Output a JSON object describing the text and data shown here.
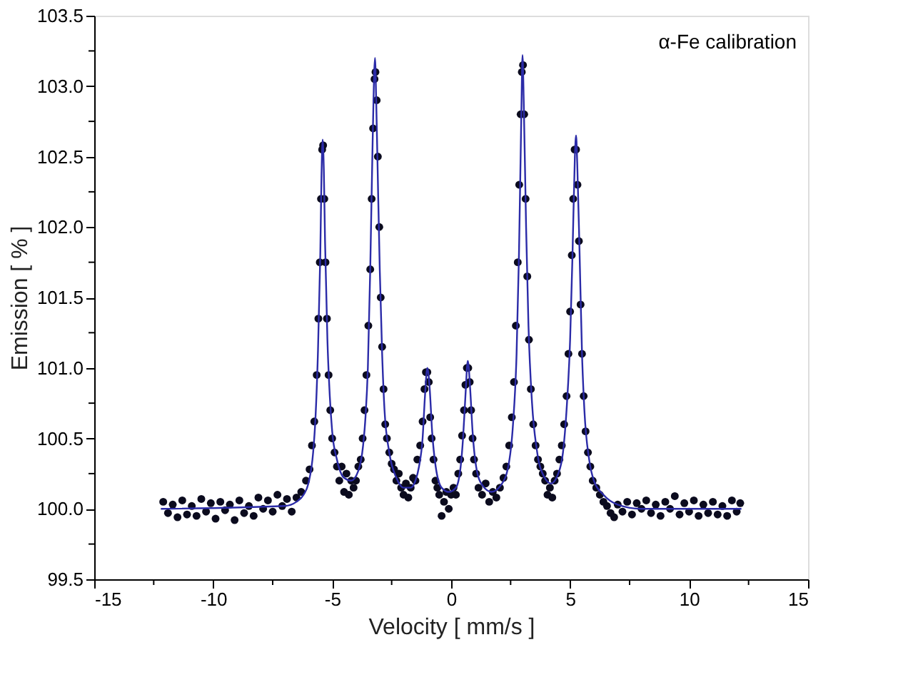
{
  "chart_data": {
    "type": "scatter",
    "xlabel": "Velocity [ mm/s ]",
    "ylabel": "Emission [ % ]",
    "annotations": [
      "α-Fe calibration"
    ],
    "xlim": [
      -15,
      15
    ],
    "ylim": [
      99.5,
      103.5
    ],
    "xticks": [
      -15,
      {
        "value": -12.5,
        "label": null
      },
      -10,
      {
        "value": -7.5,
        "label": null
      },
      -5,
      {
        "value": -2.5,
        "label": null
      },
      0,
      {
        "value": 2.5,
        "label": null
      },
      5,
      {
        "value": 7.5,
        "label": null
      },
      10,
      {
        "value": 12.5,
        "label": null
      },
      15
    ],
    "yticks": [
      {
        "value": 99.5,
        "label": "99.5"
      },
      {
        "value": 99.75,
        "label": null
      },
      {
        "value": 100,
        "label": "100.0"
      },
      {
        "value": 100.25,
        "label": null
      },
      {
        "value": 100.5,
        "label": "100.5"
      },
      {
        "value": 100.75,
        "label": null
      },
      {
        "value": 101,
        "label": "101.0"
      },
      {
        "value": 101.25,
        "label": null
      },
      {
        "value": 101.5,
        "label": "101.5"
      },
      {
        "value": 101.75,
        "label": null
      },
      {
        "value": 102,
        "label": "102.0"
      },
      {
        "value": 102.25,
        "label": null
      },
      {
        "value": 102.5,
        "label": "102.5"
      },
      {
        "value": 102.75,
        "label": null
      },
      {
        "value": 103,
        "label": "103.0"
      },
      {
        "value": 103.25,
        "label": null
      },
      {
        "value": 103.5,
        "label": "103.5"
      }
    ],
    "grid": false,
    "series": [
      {
        "marker": "circle",
        "color": "#0b0b1e",
        "x": [
          -12.1,
          -11.9,
          -11.7,
          -11.5,
          -11.3,
          -11.1,
          -10.9,
          -10.7,
          -10.5,
          -10.3,
          -10.1,
          -9.9,
          -9.7,
          -9.5,
          -9.3,
          -9.1,
          -8.9,
          -8.7,
          -8.5,
          -8.3,
          -8.1,
          -7.9,
          -7.7,
          -7.5,
          -7.3,
          -7.1,
          -6.9,
          -6.7,
          -6.5,
          -6.3,
          -6.1,
          -5.95,
          -5.85,
          -5.75,
          -5.65,
          -5.58,
          -5.52,
          -5.47,
          -5.42,
          -5.38,
          -5.33,
          -5.28,
          -5.22,
          -5.15,
          -5.08,
          -5.0,
          -4.9,
          -4.8,
          -4.7,
          -4.6,
          -4.5,
          -4.4,
          -4.3,
          -4.2,
          -4.1,
          -4.0,
          -3.9,
          -3.8,
          -3.72,
          -3.64,
          -3.56,
          -3.48,
          -3.4,
          -3.34,
          -3.28,
          -3.22,
          -3.18,
          -3.13,
          -3.08,
          -3.02,
          -2.96,
          -2.9,
          -2.84,
          -2.77,
          -2.7,
          -2.6,
          -2.5,
          -2.4,
          -2.3,
          -2.2,
          -2.1,
          -2.0,
          -1.9,
          -1.8,
          -1.7,
          -1.6,
          -1.5,
          -1.42,
          -1.3,
          -1.2,
          -1.12,
          -1.06,
          -1.0,
          -0.94,
          -0.88,
          -0.82,
          -0.74,
          -0.66,
          -0.58,
          -0.5,
          -0.4,
          -0.3,
          -0.2,
          -0.1,
          0.0,
          0.1,
          0.2,
          0.3,
          0.38,
          0.46,
          0.54,
          0.6,
          0.66,
          0.72,
          0.78,
          0.84,
          0.9,
          0.96,
          1.05,
          1.15,
          1.3,
          1.45,
          1.6,
          1.75,
          1.9,
          2.05,
          2.2,
          2.32,
          2.44,
          2.55,
          2.64,
          2.72,
          2.8,
          2.86,
          2.92,
          2.97,
          3.02,
          3.07,
          3.13,
          3.2,
          3.27,
          3.35,
          3.45,
          3.55,
          3.65,
          3.75,
          3.85,
          3.95,
          4.05,
          4.15,
          4.25,
          4.35,
          4.45,
          4.55,
          4.65,
          4.75,
          4.85,
          4.93,
          5.0,
          5.07,
          5.13,
          5.19,
          5.25,
          5.31,
          5.37,
          5.44,
          5.5,
          5.57,
          5.65,
          5.75,
          5.85,
          5.95,
          6.1,
          6.25,
          6.4,
          6.55,
          6.7,
          6.85,
          7.0,
          7.2,
          7.4,
          7.6,
          7.8,
          8.0,
          8.2,
          8.4,
          8.6,
          8.8,
          9.0,
          9.2,
          9.4,
          9.6,
          9.8,
          10.0,
          10.2,
          10.4,
          10.6,
          10.8,
          11.0,
          11.2,
          11.4,
          11.6,
          11.8,
          12.0,
          12.15
        ],
        "values": [
          100.05,
          99.97,
          100.03,
          99.94,
          100.06,
          99.96,
          100.02,
          99.95,
          100.07,
          99.98,
          100.04,
          99.93,
          100.05,
          99.99,
          100.03,
          99.92,
          100.06,
          99.97,
          100.02,
          99.95,
          100.08,
          100.0,
          100.06,
          99.98,
          100.1,
          100.02,
          100.07,
          99.98,
          100.08,
          100.12,
          100.2,
          100.28,
          100.45,
          100.62,
          100.95,
          101.35,
          101.75,
          102.2,
          102.55,
          102.58,
          102.2,
          101.75,
          101.35,
          100.95,
          100.7,
          100.5,
          100.4,
          100.3,
          100.2,
          100.3,
          100.12,
          100.25,
          100.1,
          100.2,
          100.15,
          100.2,
          100.3,
          100.35,
          100.5,
          100.7,
          100.95,
          101.3,
          101.7,
          102.2,
          102.7,
          103.05,
          103.1,
          102.9,
          102.5,
          102.0,
          101.5,
          101.15,
          100.85,
          100.6,
          100.5,
          100.4,
          100.32,
          100.28,
          100.2,
          100.25,
          100.15,
          100.1,
          100.18,
          100.08,
          100.15,
          100.22,
          100.2,
          100.35,
          100.45,
          100.62,
          100.85,
          100.97,
          100.97,
          100.9,
          100.65,
          100.5,
          100.35,
          100.2,
          100.15,
          100.1,
          99.95,
          100.05,
          100.12,
          100.0,
          100.1,
          100.15,
          100.1,
          100.25,
          100.35,
          100.52,
          100.7,
          100.88,
          101.0,
          101.0,
          100.9,
          100.7,
          100.5,
          100.35,
          100.25,
          100.15,
          100.1,
          100.18,
          100.05,
          100.12,
          100.08,
          100.15,
          100.22,
          100.3,
          100.45,
          100.65,
          100.9,
          101.3,
          101.75,
          102.3,
          102.8,
          103.1,
          103.15,
          102.8,
          102.2,
          101.65,
          101.2,
          100.85,
          100.6,
          100.45,
          100.35,
          100.3,
          100.25,
          100.2,
          100.1,
          100.15,
          100.08,
          100.2,
          100.25,
          100.35,
          100.45,
          100.6,
          100.8,
          101.1,
          101.4,
          101.8,
          102.2,
          102.55,
          102.55,
          102.3,
          101.9,
          101.45,
          101.1,
          100.8,
          100.55,
          100.4,
          100.3,
          100.2,
          100.15,
          100.1,
          100.05,
          100.02,
          99.97,
          99.94,
          100.03,
          99.98,
          100.05,
          99.96,
          100.04,
          100.0,
          100.06,
          99.97,
          100.03,
          99.95,
          100.05,
          100.0,
          100.09,
          99.96,
          100.04,
          99.98,
          100.06,
          99.95,
          100.03,
          99.97,
          100.05,
          99.96,
          100.02,
          99.95,
          100.06,
          99.98,
          100.04
        ]
      },
      {
        "type": "line",
        "line_style": "solid",
        "marker": "none",
        "color": "#2b2ba8",
        "x": [
          -12.2,
          -7,
          -6.5,
          -6.2,
          -6.0,
          -5.8,
          -5.7,
          -5.6,
          -5.5,
          -5.45,
          -5.4,
          -5.35,
          -5.3,
          -5.2,
          -5.1,
          -5.0,
          -4.8,
          -4.5,
          -4.2,
          -3.9,
          -3.7,
          -3.6,
          -3.5,
          -3.4,
          -3.3,
          -3.2,
          -3.15,
          -3.1,
          -3.0,
          -2.9,
          -2.8,
          -2.6,
          -2.3,
          -2.0,
          -1.7,
          -1.5,
          -1.35,
          -1.2,
          -1.1,
          -1.0,
          -0.9,
          -0.8,
          -0.65,
          -0.4,
          -0.1,
          0.2,
          0.4,
          0.5,
          0.6,
          0.7,
          0.8,
          0.9,
          1.05,
          1.3,
          1.7,
          2.1,
          2.4,
          2.6,
          2.75,
          2.85,
          2.95,
          3.0,
          3.05,
          3.15,
          3.25,
          3.4,
          3.6,
          3.9,
          4.2,
          4.5,
          4.7,
          4.85,
          5.0,
          5.1,
          5.2,
          5.25,
          5.3,
          5.4,
          5.5,
          5.6,
          5.8,
          6.0,
          6.4,
          7.0,
          8,
          12.2
        ],
        "values": [
          100.0,
          100.02,
          100.05,
          100.1,
          100.18,
          100.4,
          100.65,
          101.1,
          101.8,
          102.35,
          102.62,
          102.4,
          101.9,
          101.2,
          100.8,
          100.55,
          100.35,
          100.22,
          100.2,
          100.27,
          100.45,
          100.65,
          101.0,
          101.7,
          102.6,
          103.2,
          102.9,
          102.5,
          101.7,
          101.1,
          100.7,
          100.4,
          100.22,
          100.15,
          100.15,
          100.2,
          100.3,
          100.5,
          100.8,
          101.0,
          100.85,
          100.55,
          100.3,
          100.15,
          100.12,
          100.15,
          100.3,
          100.5,
          100.8,
          101.05,
          100.85,
          100.55,
          100.3,
          100.17,
          100.12,
          100.17,
          100.3,
          100.6,
          101.1,
          101.8,
          102.8,
          103.22,
          102.9,
          102.0,
          101.3,
          100.75,
          100.42,
          100.23,
          100.18,
          100.25,
          100.4,
          100.7,
          101.2,
          101.8,
          102.5,
          102.65,
          102.45,
          101.8,
          101.1,
          100.7,
          100.35,
          100.2,
          100.1,
          100.03,
          100.0,
          100.0
        ]
      }
    ]
  }
}
